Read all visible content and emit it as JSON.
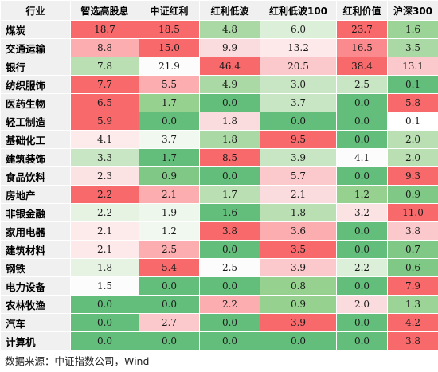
{
  "table": {
    "corner_label": "行业",
    "columns": [
      "智选高股息",
      "中证红利",
      "红利低波",
      "红利低波100",
      "红利价值",
      "沪深300"
    ],
    "rows": [
      {
        "industry": "煤炭",
        "values": [
          "18.7",
          "18.5",
          "4.8",
          "6.0",
          "23.7",
          "1.6"
        ]
      },
      {
        "industry": "交通运输",
        "values": [
          "8.8",
          "15.0",
          "9.9",
          "13.2",
          "16.5",
          "3.5"
        ]
      },
      {
        "industry": "银行",
        "values": [
          "7.8",
          "21.9",
          "46.4",
          "20.5",
          "38.4",
          "13.1"
        ]
      },
      {
        "industry": "纺织服饰",
        "values": [
          "7.7",
          "5.5",
          "4.9",
          "3.0",
          "2.5",
          "0.1"
        ]
      },
      {
        "industry": "医药生物",
        "values": [
          "6.5",
          "1.7",
          "0.0",
          "3.7",
          "0.0",
          "5.8"
        ]
      },
      {
        "industry": "轻工制造",
        "values": [
          "5.9",
          "0.0",
          "1.8",
          "0.0",
          "0.0",
          "0.1"
        ]
      },
      {
        "industry": "基础化工",
        "values": [
          "4.1",
          "3.7",
          "1.8",
          "9.5",
          "0.0",
          "2.0"
        ]
      },
      {
        "industry": "建筑装饰",
        "values": [
          "3.3",
          "1.7",
          "8.5",
          "3.9",
          "4.1",
          "2.0"
        ]
      },
      {
        "industry": "食品饮料",
        "values": [
          "2.3",
          "0.9",
          "0.0",
          "5.7",
          "0.0",
          "9.3"
        ]
      },
      {
        "industry": "房地产",
        "values": [
          "2.2",
          "2.1",
          "1.7",
          "2.1",
          "1.2",
          "0.9"
        ]
      },
      {
        "industry": "非银金融",
        "values": [
          "2.2",
          "1.9",
          "1.6",
          "1.8",
          "3.2",
          "11.0"
        ]
      },
      {
        "industry": "家用电器",
        "values": [
          "2.1",
          "1.2",
          "3.8",
          "3.6",
          "0.0",
          "3.8"
        ]
      },
      {
        "industry": "建筑材料",
        "values": [
          "2.1",
          "2.5",
          "0.0",
          "3.5",
          "0.0",
          "0.7"
        ]
      },
      {
        "industry": "钢铁",
        "values": [
          "1.8",
          "5.4",
          "2.5",
          "3.9",
          "2.2",
          "0.6"
        ]
      },
      {
        "industry": "电力设备",
        "values": [
          "1.5",
          "0.0",
          "0.0",
          "0.8",
          "0.0",
          "7.9"
        ]
      },
      {
        "industry": "农林牧渔",
        "values": [
          "0.0",
          "0.0",
          "2.2",
          "0.9",
          "2.0",
          "1.3"
        ]
      },
      {
        "industry": "汽车",
        "values": [
          "0.0",
          "2.7",
          "0.0",
          "3.9",
          "0.0",
          "4.2"
        ]
      },
      {
        "industry": "计算机",
        "values": [
          "0.0",
          "0.0",
          "0.0",
          "0.0",
          "0.0",
          "3.8"
        ]
      }
    ],
    "cell_colors": [
      [
        "#f8696b",
        "#f8696b",
        "#abd9a6",
        "#dcefd9",
        "#f8696b",
        "#9cd396"
      ],
      [
        "#fbadb0",
        "#f8696b",
        "#fbdcde",
        "#fde9ea",
        "#fa8a8d",
        "#abd9a6"
      ],
      [
        "#b9dfb3",
        "#fbfcfb",
        "#f8696b",
        "#fbc9cb",
        "#f8696b",
        "#fbc9cb"
      ],
      [
        "#f8696b",
        "#fbadb0",
        "#abd9a6",
        "#c9e6c4",
        "#c9e6c4",
        "#63be7b"
      ],
      [
        "#f8696b",
        "#96d18f",
        "#63be7b",
        "#c9e6c4",
        "#63be7b",
        "#f8696b"
      ],
      [
        "#f8696b",
        "#63be7b",
        "#fbdcde",
        "#63be7b",
        "#63be7b",
        "#ffffff"
      ],
      [
        "#fdebec",
        "#f1f8f0",
        "#abd9a6",
        "#f8696b",
        "#63be7b",
        "#b9dfb3"
      ],
      [
        "#c9e6c4",
        "#63be7b",
        "#f8696b",
        "#c9e6c4",
        "#fbfcfb",
        "#b9dfb3"
      ],
      [
        "#fbe3e4",
        "#7fc886",
        "#63be7b",
        "#fbc9cb",
        "#63be7b",
        "#f8696b"
      ],
      [
        "#f8696b",
        "#fbadb0",
        "#b9dfb3",
        "#fbdcde",
        "#96d18f",
        "#7fc886"
      ],
      [
        "#e6f3e3",
        "#eef7ec",
        "#63be7b",
        "#b9dfb3",
        "#fbe3e4",
        "#f8696b"
      ],
      [
        "#fdebec",
        "#f1f8f0",
        "#f8696b",
        "#fbadb0",
        "#63be7b",
        "#fbc9cb"
      ],
      [
        "#fde9ea",
        "#fbadb0",
        "#63be7b",
        "#f8696b",
        "#63be7b",
        "#7fc886"
      ],
      [
        "#e6f3e3",
        "#f8696b",
        "#fbfcfb",
        "#fbc9cb",
        "#dcefd9",
        "#7fc886"
      ],
      [
        "#fbfcfb",
        "#63be7b",
        "#63be7b",
        "#96d18f",
        "#63be7b",
        "#f8696b"
      ],
      [
        "#63be7b",
        "#63be7b",
        "#fbadb0",
        "#96d18f",
        "#fbdcde",
        "#9cd396"
      ],
      [
        "#63be7b",
        "#fbc9cb",
        "#63be7b",
        "#f8696b",
        "#63be7b",
        "#f8696b"
      ],
      [
        "#63be7b",
        "#63be7b",
        "#63be7b",
        "#63be7b",
        "#63be7b",
        "#f8696b"
      ]
    ]
  },
  "footer": {
    "source": "数据来源：中证指数公司，Wind"
  }
}
